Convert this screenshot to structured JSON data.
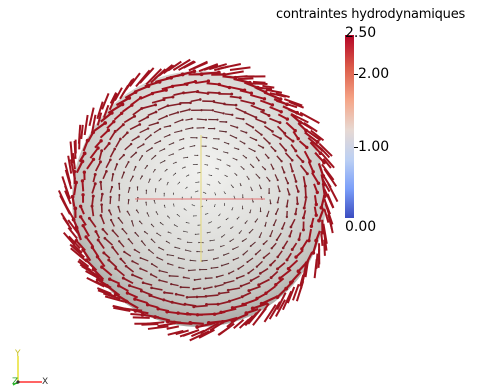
{
  "window": {
    "background": "#ffffff"
  },
  "legend": {
    "title": "contraintes hydrodynamiques",
    "max_label": "2.50",
    "ticks": [
      "2.00",
      "1.00",
      "0.00"
    ],
    "colors": {
      "high": "#b40426",
      "mid": "#dddddd",
      "low": "#3b4cc0"
    }
  },
  "scene": {
    "object": "sphere",
    "sphere_color": "#c8c8c6",
    "glyph_color_high": "#a0131f",
    "glyph_color_low": "#3d3d3d",
    "axis_colors": {
      "x": "#e06666",
      "y": "#e8e080"
    }
  },
  "orientation_axes": {
    "labels": {
      "x": "X",
      "y": "Y",
      "z": "Z"
    },
    "colors": {
      "x": "#ff3030",
      "y": "#e8e030",
      "z": "#20c020"
    }
  }
}
